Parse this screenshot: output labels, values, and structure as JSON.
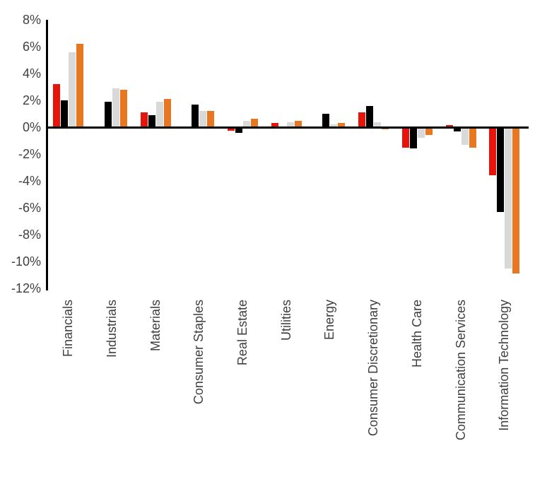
{
  "chart_data": {
    "type": "bar",
    "title": "",
    "subtitle": "",
    "legend": null,
    "grid": false,
    "xlabel": "",
    "ylabel": "",
    "ylim": [
      -12,
      8
    ],
    "ytick_step": 2,
    "yticks": [
      "8%",
      "6%",
      "4%",
      "2%",
      "0%",
      "-2%",
      "-4%",
      "-6%",
      "-8%",
      "-10%",
      "-12%"
    ],
    "ytick_values": [
      8,
      6,
      4,
      2,
      0,
      -2,
      -4,
      -6,
      -8,
      -10,
      -12
    ],
    "categories": [
      "Financials",
      "Industrials",
      "Materials",
      "Consumer Staples",
      "Real Estate",
      "Utilities",
      "Energy",
      "Consumer Discretionary",
      "Health Care",
      "Communication Services",
      "Information Technology"
    ],
    "series": [
      {
        "name": "series-red",
        "color": "#E6140A",
        "values": [
          3.2,
          0,
          1.1,
          0,
          -0.25,
          0.3,
          -0.1,
          1.1,
          -1.5,
          0.15,
          -3.6
        ]
      },
      {
        "name": "series-black",
        "color": "#000000",
        "values": [
          2.0,
          1.9,
          0.9,
          1.7,
          -0.4,
          0,
          1.0,
          1.6,
          -1.6,
          -0.3,
          -6.3
        ]
      },
      {
        "name": "series-gray",
        "color": "#D9D9D9",
        "values": [
          5.6,
          2.9,
          1.9,
          1.2,
          0.5,
          0.35,
          0.2,
          0.35,
          -0.8,
          -1.3,
          -10.5
        ]
      },
      {
        "name": "series-orange",
        "color": "#E87722",
        "values": [
          6.2,
          2.8,
          2.1,
          1.2,
          0.65,
          0.5,
          0.3,
          -0.15,
          -0.6,
          -1.5,
          -10.9
        ]
      }
    ],
    "axis_color": "#000000",
    "label_color": "#3f3f3f"
  }
}
